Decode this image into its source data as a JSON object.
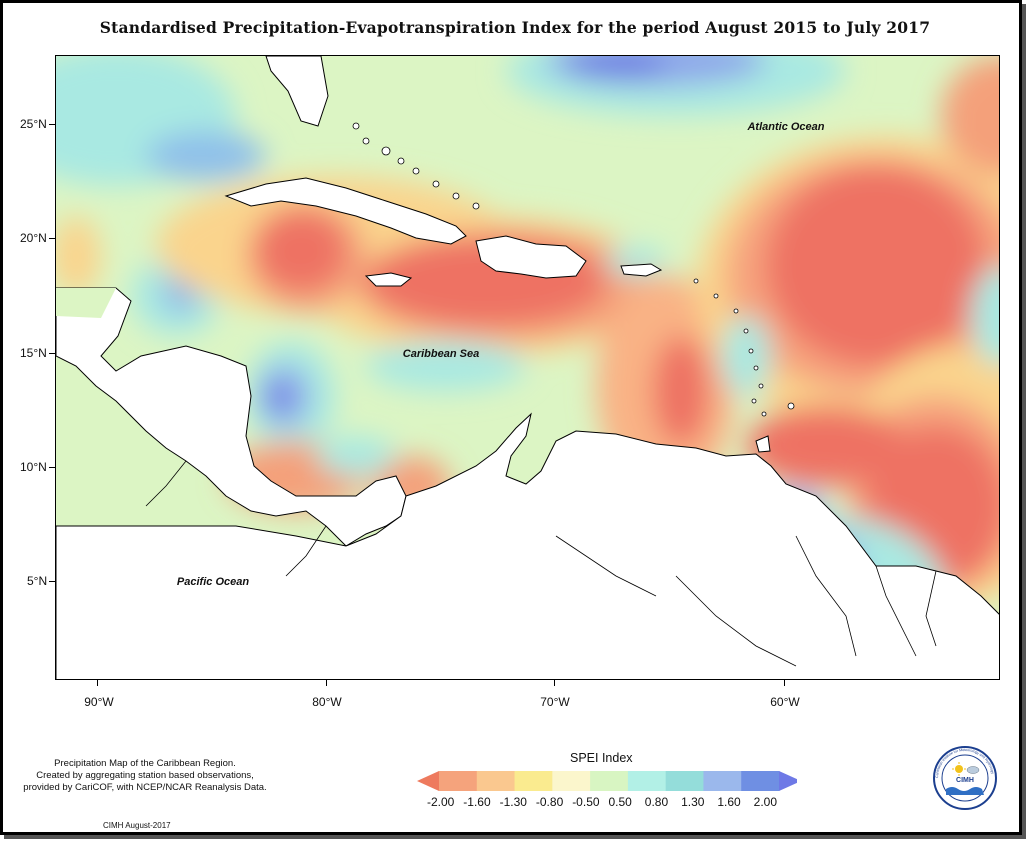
{
  "title": "Standardised Precipitation-Evapotranspiration Index for the period August 2015 to July 2017",
  "map": {
    "lon_range": [
      -92,
      -50
    ],
    "lat_range": [
      1,
      28
    ],
    "lat_ticks": [
      "25°N",
      "20°N",
      "15°N",
      "10°N",
      "5°N"
    ],
    "lon_ticks": [
      "90°W",
      "80°W",
      "70°W",
      "60°W"
    ],
    "labels": {
      "atlantic": "Atlantic Ocean",
      "caribbean": "Caribbean Sea",
      "pacific": "Pacific Ocean"
    }
  },
  "legend": {
    "title": "SPEI Index",
    "values": [
      "-2.00",
      "-1.60",
      "-1.30",
      "-0.80",
      "-0.50",
      "0.50",
      "0.80",
      "1.30",
      "1.60",
      "2.00"
    ],
    "colors": [
      "#ee7a5e",
      "#f5a37c",
      "#fac88f",
      "#faeb8f",
      "#fbf6cc",
      "#d8f5c2",
      "#b2f0e6",
      "#94ddda",
      "#9bb8ec",
      "#6f8fe3",
      "#6e79e6"
    ]
  },
  "footnote": {
    "line1": "Precipitation Map of the Caribbean Region.",
    "line2": "Created by aggregating station based observations,",
    "line3": "provided by CariCOF, with NCEP/NCAR Reanalysis Data."
  },
  "stamp": "CIMH August-2017",
  "logo": {
    "text": "CIMH",
    "ring_text": "Caribbean Institute for Meteorology and Hydrology"
  }
}
